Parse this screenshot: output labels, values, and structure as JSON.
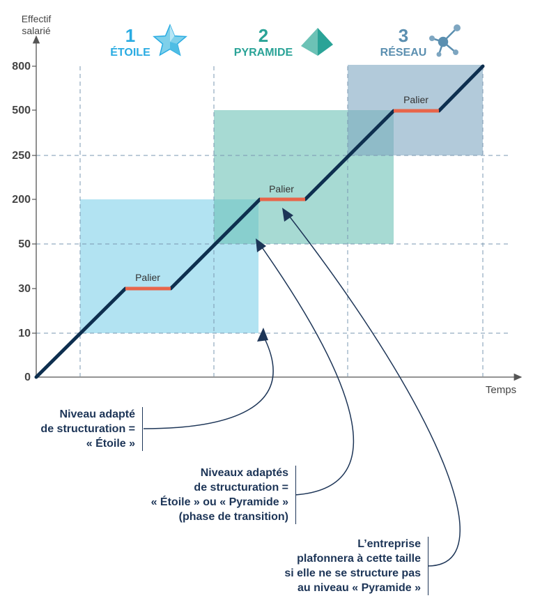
{
  "axes": {
    "y_title_line1": "Effectif",
    "y_title_line2": "salarié",
    "x_title": "Temps",
    "y_ticks": [
      "0",
      "10",
      "30",
      "50",
      "200",
      "250",
      "500",
      "800"
    ]
  },
  "stages": [
    {
      "number": "1",
      "label": "ÉTOILE",
      "color": "#29abe2",
      "icon": "star-icon"
    },
    {
      "number": "2",
      "label": "PYRAMIDE",
      "color": "#2aa397",
      "icon": "pyramid-icon"
    },
    {
      "number": "3",
      "label": "RÉSEAU",
      "color": "#5b8fb0",
      "icon": "network-icon"
    }
  ],
  "zones": [
    {
      "name": "etoile",
      "color": "#7fd0ea"
    },
    {
      "name": "pyramide",
      "color": "#6cc2b6"
    },
    {
      "name": "reseau",
      "color": "#7ea6c1"
    }
  ],
  "paliers": [
    {
      "label": "Palier"
    },
    {
      "label": "Palier"
    },
    {
      "label": "Palier"
    }
  ],
  "colors": {
    "growth_line": "#0e2f4f",
    "palier": "#e8654a",
    "text": "#1d3557",
    "axis": "#555555"
  },
  "annotations": {
    "a1": [
      "Niveau adapté",
      "de structuration =",
      "« Étoile »"
    ],
    "a2": [
      "Niveaux adaptés",
      "de structuration =",
      "« Étoile » ou « Pyramide »",
      "(phase de transition)"
    ],
    "a3": [
      "L’entreprise",
      "plafonnera à cette taille",
      "si elle ne se structure pas",
      "au niveau « Pyramide »"
    ]
  }
}
